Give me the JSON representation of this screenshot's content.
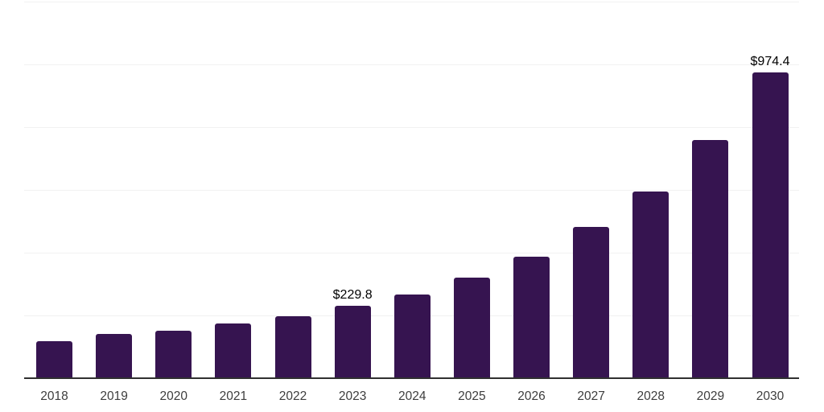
{
  "chart_data": {
    "type": "bar",
    "title": "",
    "xlabel": "",
    "ylabel": "",
    "categories": [
      "2018",
      "2019",
      "2020",
      "2021",
      "2022",
      "2023",
      "2024",
      "2025",
      "2026",
      "2027",
      "2028",
      "2029",
      "2030"
    ],
    "values": [
      118,
      140,
      152,
      174,
      198,
      229.8,
      267,
      321,
      388,
      481,
      594,
      758,
      974.4
    ],
    "labeled_points": [
      {
        "category": "2023",
        "label": "$229.8"
      },
      {
        "category": "2030",
        "label": "$974.4"
      }
    ],
    "ylim": [
      0,
      1200
    ],
    "gridline_step": 200,
    "grid": true,
    "y_axis_labels_visible": false,
    "legend_position": "none"
  },
  "style": {
    "bar_color": "#361450",
    "gridline_color": "#f1f1f1",
    "axis_line_color": "#303030",
    "value_label_color": "#000000",
    "tick_label_color": "#3d3d3d",
    "background_color": "#ffffff"
  }
}
